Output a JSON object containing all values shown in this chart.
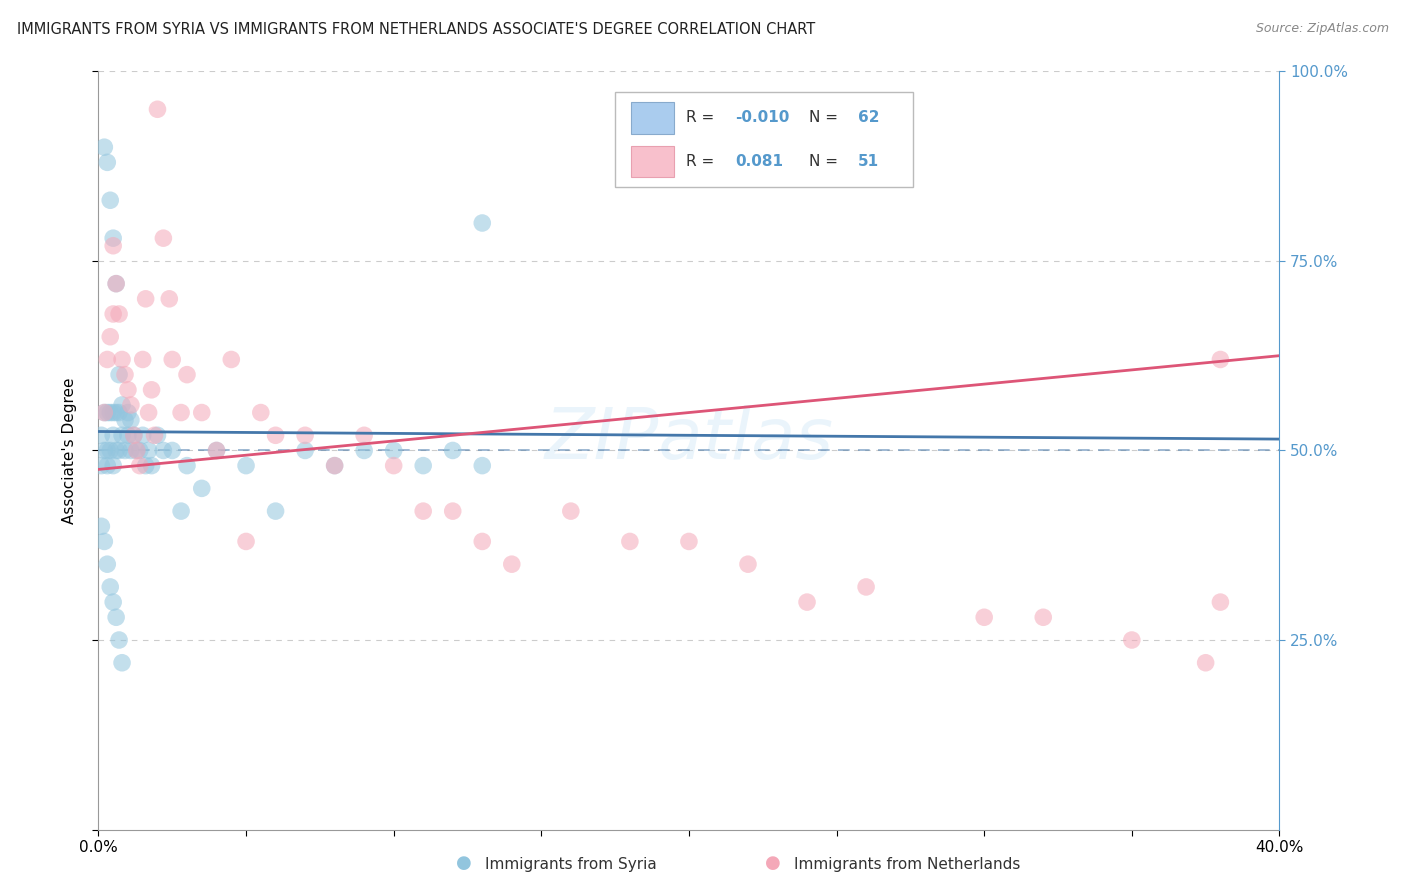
{
  "title": "IMMIGRANTS FROM SYRIA VS IMMIGRANTS FROM NETHERLANDS ASSOCIATE'S DEGREE CORRELATION CHART",
  "source": "Source: ZipAtlas.com",
  "ylabel": "Associate's Degree",
  "xlim": [
    0.0,
    0.4
  ],
  "ylim": [
    0.0,
    1.0
  ],
  "syria_R": -0.01,
  "syria_N": 62,
  "netherlands_R": 0.081,
  "netherlands_N": 51,
  "syria_color": "#92c5de",
  "netherlands_color": "#f4a8b8",
  "syria_line_color": "#4477aa",
  "netherlands_line_color": "#dd5577",
  "background_color": "#ffffff",
  "grid_color": "#cccccc",
  "right_tick_color": "#5599cc",
  "dashed_line_y": 0.5,
  "watermark": "ZIPatlas",
  "bottom_label1": "Immigrants from Syria",
  "bottom_label2": "Immigrants from Netherlands",
  "syria_x": [
    0.001,
    0.001,
    0.002,
    0.002,
    0.002,
    0.003,
    0.003,
    0.003,
    0.003,
    0.004,
    0.004,
    0.004,
    0.005,
    0.005,
    0.005,
    0.005,
    0.006,
    0.006,
    0.006,
    0.007,
    0.007,
    0.007,
    0.008,
    0.008,
    0.009,
    0.009,
    0.01,
    0.01,
    0.011,
    0.011,
    0.012,
    0.013,
    0.014,
    0.015,
    0.016,
    0.017,
    0.018,
    0.02,
    0.022,
    0.025,
    0.028,
    0.03,
    0.035,
    0.04,
    0.05,
    0.06,
    0.07,
    0.08,
    0.09,
    0.1,
    0.11,
    0.12,
    0.13,
    0.001,
    0.002,
    0.003,
    0.004,
    0.005,
    0.006,
    0.007,
    0.008,
    0.13
  ],
  "syria_y": [
    0.52,
    0.48,
    0.9,
    0.55,
    0.5,
    0.88,
    0.55,
    0.5,
    0.48,
    0.83,
    0.55,
    0.5,
    0.78,
    0.55,
    0.52,
    0.48,
    0.72,
    0.55,
    0.5,
    0.6,
    0.55,
    0.5,
    0.56,
    0.52,
    0.54,
    0.5,
    0.55,
    0.52,
    0.54,
    0.5,
    0.52,
    0.5,
    0.5,
    0.52,
    0.48,
    0.5,
    0.48,
    0.52,
    0.5,
    0.5,
    0.42,
    0.48,
    0.45,
    0.5,
    0.48,
    0.42,
    0.5,
    0.48,
    0.5,
    0.5,
    0.48,
    0.5,
    0.8,
    0.4,
    0.38,
    0.35,
    0.32,
    0.3,
    0.28,
    0.25,
    0.22,
    0.48
  ],
  "netherlands_x": [
    0.002,
    0.003,
    0.004,
    0.005,
    0.006,
    0.007,
    0.008,
    0.009,
    0.01,
    0.011,
    0.012,
    0.013,
    0.014,
    0.015,
    0.016,
    0.017,
    0.018,
    0.019,
    0.02,
    0.022,
    0.024,
    0.025,
    0.028,
    0.03,
    0.035,
    0.04,
    0.045,
    0.05,
    0.055,
    0.06,
    0.07,
    0.08,
    0.09,
    0.1,
    0.11,
    0.12,
    0.13,
    0.14,
    0.16,
    0.18,
    0.2,
    0.22,
    0.24,
    0.26,
    0.3,
    0.32,
    0.35,
    0.375,
    0.38,
    0.005,
    0.38
  ],
  "netherlands_y": [
    0.55,
    0.62,
    0.65,
    0.68,
    0.72,
    0.68,
    0.62,
    0.6,
    0.58,
    0.56,
    0.52,
    0.5,
    0.48,
    0.62,
    0.7,
    0.55,
    0.58,
    0.52,
    0.95,
    0.78,
    0.7,
    0.62,
    0.55,
    0.6,
    0.55,
    0.5,
    0.62,
    0.38,
    0.55,
    0.52,
    0.52,
    0.48,
    0.52,
    0.48,
    0.42,
    0.42,
    0.38,
    0.35,
    0.42,
    0.38,
    0.38,
    0.35,
    0.3,
    0.32,
    0.28,
    0.28,
    0.25,
    0.22,
    0.3,
    0.77,
    0.62
  ]
}
